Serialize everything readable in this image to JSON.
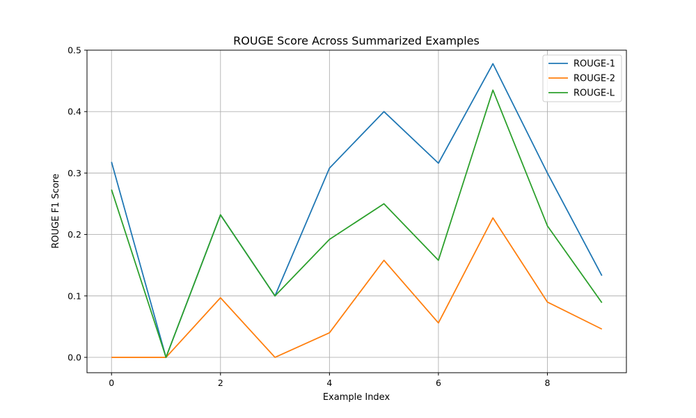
{
  "chart_data": {
    "type": "line",
    "title": "ROUGE Score Across Summarized Examples",
    "xlabel": "Example Index",
    "ylabel": "ROUGE F1 Score",
    "x": [
      0,
      1,
      2,
      3,
      4,
      5,
      6,
      7,
      8,
      9
    ],
    "xlim": [
      -0.45,
      9.45
    ],
    "ylim": [
      -0.025,
      0.5
    ],
    "xticks": [
      0,
      2,
      4,
      6,
      8
    ],
    "xtick_labels": [
      "0",
      "2",
      "4",
      "6",
      "8"
    ],
    "yticks": [
      0.0,
      0.1,
      0.2,
      0.3,
      0.4,
      0.5
    ],
    "ytick_labels": [
      "0.0",
      "0.1",
      "0.2",
      "0.3",
      "0.4",
      "0.5"
    ],
    "grid": true,
    "legend_position": "top-right",
    "series": [
      {
        "name": "ROUGE-1",
        "color": "#1f77b4",
        "values": [
          0.318,
          0.0,
          0.232,
          0.1,
          0.308,
          0.4,
          0.316,
          0.478,
          0.3,
          0.133
        ]
      },
      {
        "name": "ROUGE-2",
        "color": "#ff7f0e",
        "values": [
          0.0,
          0.0,
          0.097,
          0.0,
          0.04,
          0.158,
          0.056,
          0.227,
          0.09,
          0.046
        ]
      },
      {
        "name": "ROUGE-L",
        "color": "#2ca02c",
        "values": [
          0.273,
          0.0,
          0.232,
          0.1,
          0.192,
          0.25,
          0.158,
          0.435,
          0.214,
          0.089
        ]
      }
    ]
  }
}
